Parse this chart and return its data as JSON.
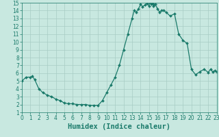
{
  "x_values": [
    0,
    0.5,
    1,
    1.25,
    1.5,
    2,
    2.5,
    3,
    3.5,
    4,
    4.5,
    5,
    5.5,
    6,
    6.5,
    7,
    7.5,
    8,
    8.5,
    9,
    9.5,
    10,
    10.5,
    11,
    11.5,
    12,
    12.5,
    13,
    13.25,
    13.5,
    13.75,
    14,
    14.25,
    14.5,
    14.75,
    15,
    15.1,
    15.25,
    15.4,
    15.5,
    15.6,
    15.75,
    16,
    16.25,
    16.5,
    16.75,
    17,
    17.5,
    18,
    18.5,
    19,
    19.5,
    20,
    20.5,
    21,
    21.5,
    22,
    22.25,
    22.5,
    22.75,
    23
  ],
  "y_values": [
    5.0,
    5.5,
    5.5,
    5.6,
    5.2,
    4.0,
    3.5,
    3.2,
    3.0,
    2.7,
    2.5,
    2.2,
    2.1,
    2.1,
    2.0,
    2.0,
    2.0,
    1.9,
    1.9,
    1.9,
    2.5,
    3.5,
    4.5,
    5.5,
    7.0,
    9.0,
    11.0,
    13.0,
    14.0,
    13.8,
    14.2,
    14.8,
    14.5,
    14.7,
    14.9,
    14.6,
    15.1,
    14.8,
    14.9,
    14.6,
    14.7,
    14.8,
    14.2,
    13.8,
    14.0,
    14.0,
    13.8,
    13.3,
    13.6,
    11.0,
    10.2,
    9.8,
    6.5,
    5.8,
    6.2,
    6.5,
    6.1,
    6.5,
    6.2,
    6.3,
    6.2
  ],
  "line_color": "#1a7a6a",
  "marker_color": "#1a7a6a",
  "bg_color": "#c8e8e0",
  "grid_color": "#a8ccc4",
  "xlabel": "Humidex (Indice chaleur)",
  "xlim": [
    0,
    23
  ],
  "ylim": [
    1,
    15
  ],
  "xticks": [
    0,
    1,
    2,
    3,
    4,
    5,
    6,
    7,
    8,
    9,
    10,
    11,
    12,
    13,
    14,
    15,
    16,
    17,
    18,
    19,
    20,
    21,
    22,
    23
  ],
  "yticks": [
    1,
    2,
    3,
    4,
    5,
    6,
    7,
    8,
    9,
    10,
    11,
    12,
    13,
    14,
    15
  ],
  "tick_fontsize": 5.5,
  "xlabel_fontsize": 7.5,
  "marker_size": 2.0,
  "line_width": 0.9
}
